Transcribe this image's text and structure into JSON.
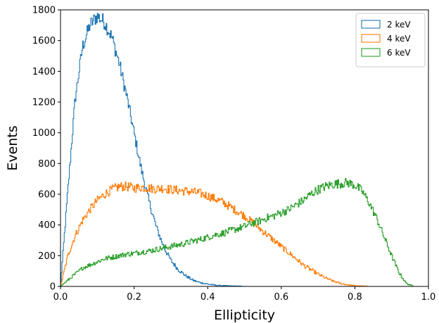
{
  "chart_data": {
    "type": "line",
    "title": "",
    "xlabel": "Ellipticity",
    "ylabel": "Events",
    "xlim": [
      0.0,
      1.0
    ],
    "ylim": [
      0,
      1800
    ],
    "xticks": [
      0.0,
      0.2,
      0.4,
      0.6,
      0.8,
      1.0
    ],
    "yticks": [
      0,
      200,
      400,
      600,
      800,
      1000,
      1200,
      1400,
      1600,
      1800
    ],
    "xtick_labels": [
      "0.0",
      "0.2",
      "0.4",
      "0.6",
      "0.8",
      "1.0"
    ],
    "ytick_labels": [
      "0",
      "200",
      "400",
      "600",
      "800",
      "1000",
      "1200",
      "1400",
      "1600",
      "1800"
    ],
    "grid": false,
    "legend_position": "top-right",
    "step_style": "histogram-step",
    "series": [
      {
        "name": "2 keV",
        "color": "#1f77b4",
        "x": [
          0.0,
          0.02,
          0.04,
          0.06,
          0.08,
          0.1,
          0.12,
          0.14,
          0.16,
          0.18,
          0.2,
          0.22,
          0.24,
          0.26,
          0.28,
          0.3,
          0.32,
          0.34,
          0.36,
          0.38,
          0.4,
          0.42,
          0.44,
          0.46,
          0.48,
          0.5
        ],
        "y": [
          0,
          620,
          1220,
          1560,
          1700,
          1760,
          1720,
          1620,
          1450,
          1240,
          1000,
          760,
          560,
          390,
          260,
          170,
          110,
          70,
          40,
          25,
          15,
          8,
          5,
          3,
          2,
          0
        ]
      },
      {
        "name": "4 keV",
        "color": "#ff7f0e",
        "x": [
          0.0,
          0.02,
          0.04,
          0.06,
          0.08,
          0.1,
          0.12,
          0.14,
          0.16,
          0.18,
          0.2,
          0.22,
          0.24,
          0.26,
          0.28,
          0.3,
          0.32,
          0.34,
          0.36,
          0.38,
          0.4,
          0.42,
          0.44,
          0.46,
          0.48,
          0.5,
          0.52,
          0.54,
          0.56,
          0.58,
          0.6,
          0.62,
          0.64,
          0.66,
          0.68,
          0.7,
          0.72,
          0.74,
          0.76,
          0.78,
          0.8,
          0.82,
          0.84
        ],
        "y": [
          0,
          200,
          330,
          430,
          500,
          560,
          600,
          630,
          650,
          650,
          640,
          645,
          640,
          635,
          640,
          630,
          625,
          620,
          615,
          605,
          590,
          570,
          550,
          520,
          490,
          460,
          420,
          380,
          340,
          300,
          260,
          220,
          180,
          140,
          110,
          80,
          55,
          35,
          20,
          10,
          5,
          2,
          0
        ]
      },
      {
        "name": "6 keV",
        "color": "#2ca02c",
        "x": [
          0.0,
          0.02,
          0.04,
          0.06,
          0.08,
          0.1,
          0.12,
          0.14,
          0.16,
          0.18,
          0.2,
          0.22,
          0.24,
          0.26,
          0.28,
          0.3,
          0.32,
          0.34,
          0.36,
          0.38,
          0.4,
          0.42,
          0.44,
          0.46,
          0.48,
          0.5,
          0.52,
          0.54,
          0.56,
          0.58,
          0.6,
          0.62,
          0.64,
          0.66,
          0.68,
          0.7,
          0.72,
          0.74,
          0.76,
          0.78,
          0.8,
          0.82,
          0.84,
          0.86,
          0.88,
          0.9,
          0.92,
          0.94,
          0.96
        ],
        "y": [
          0,
          40,
          80,
          120,
          140,
          160,
          180,
          190,
          200,
          210,
          215,
          225,
          230,
          240,
          250,
          260,
          270,
          280,
          295,
          305,
          320,
          335,
          345,
          360,
          375,
          390,
          410,
          425,
          445,
          460,
          480,
          500,
          530,
          560,
          600,
          630,
          650,
          665,
          670,
          675,
          660,
          620,
          540,
          440,
          320,
          200,
          90,
          20,
          0
        ]
      }
    ]
  }
}
